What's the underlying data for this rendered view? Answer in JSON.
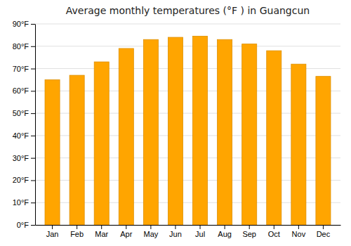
{
  "chart_data": {
    "type": "bar",
    "title": "Average monthly temperatures (°F ) in Guangcun",
    "categories": [
      "Jan",
      "Feb",
      "Mar",
      "Apr",
      "May",
      "Jun",
      "Jul",
      "Aug",
      "Sep",
      "Oct",
      "Nov",
      "Dec"
    ],
    "values": [
      65,
      67,
      73,
      79,
      83,
      84,
      84.5,
      83,
      81,
      78,
      72,
      66.5
    ],
    "color": "#FFA500",
    "ylim": [
      0,
      90
    ],
    "yticks": [
      {
        "value": 0,
        "label": "0°F"
      },
      {
        "value": 10,
        "label": "10°F"
      },
      {
        "value": 20,
        "label": "20°F"
      },
      {
        "value": 30,
        "label": "30°F"
      },
      {
        "value": 40,
        "label": "40°F"
      },
      {
        "value": 50,
        "label": "50°F"
      },
      {
        "value": 60,
        "label": "60°F"
      },
      {
        "value": 70,
        "label": "70°F"
      },
      {
        "value": 80,
        "label": "80°F"
      },
      {
        "value": 90,
        "label": "90°F"
      }
    ],
    "grid": true
  }
}
